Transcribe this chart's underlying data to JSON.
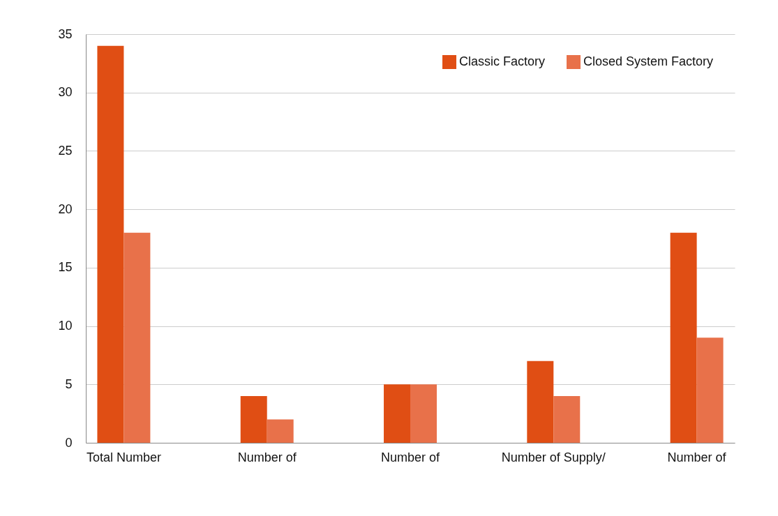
{
  "chart_data": {
    "type": "bar",
    "categories": [
      "Total Number",
      "Number of",
      "Number of",
      "Number of Supply/",
      "Number of"
    ],
    "series": [
      {
        "name": "Classic Factory",
        "color": "#e04e14",
        "values": [
          34,
          4,
          5,
          7,
          18
        ]
      },
      {
        "name": "Closed System Factory",
        "color": "#e8714a",
        "values": [
          18,
          2,
          5,
          4,
          9
        ]
      }
    ],
    "ylim": [
      0,
      35
    ],
    "yticks": [
      0,
      5,
      10,
      15,
      20,
      25,
      30,
      35
    ],
    "grid": "y",
    "legend": "top right"
  }
}
